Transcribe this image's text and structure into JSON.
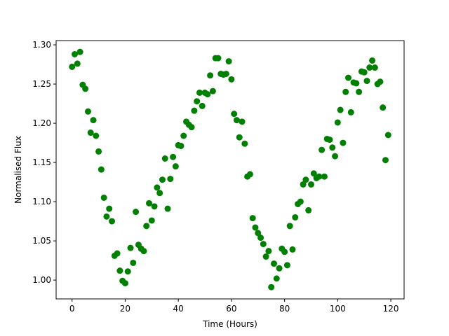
{
  "chart_data": {
    "type": "scatter",
    "xlabel": "Time (Hours)",
    "ylabel": "Normalised Flux",
    "color": "#008000",
    "x": [
      0,
      1,
      2,
      3,
      4,
      5,
      6,
      7,
      8,
      9,
      10,
      11,
      12,
      13,
      14,
      15,
      16,
      17,
      18,
      19,
      20,
      21,
      22,
      23,
      24,
      25,
      26,
      27,
      28,
      29,
      30,
      31,
      32,
      33,
      34,
      35,
      36,
      37,
      38,
      39,
      40,
      41,
      42,
      43,
      44,
      45,
      46,
      47,
      48,
      49,
      50,
      51,
      52,
      53,
      54,
      55,
      56,
      57,
      58,
      59,
      60,
      61,
      62,
      63,
      64,
      65,
      66,
      67,
      68,
      69,
      70,
      71,
      72,
      73,
      74,
      75,
      76,
      77,
      78,
      79,
      80,
      81,
      82,
      83,
      84,
      85,
      86,
      87,
      88,
      89,
      90,
      91,
      92,
      93,
      94,
      95,
      96,
      97,
      98,
      99,
      100,
      101,
      102,
      103,
      104,
      105,
      106,
      107,
      108,
      109,
      110,
      111,
      112,
      113,
      114,
      115,
      116,
      117,
      118,
      119
    ],
    "values": [
      1.272,
      1.288,
      1.276,
      1.291,
      1.249,
      1.244,
      1.215,
      1.188,
      1.204,
      1.184,
      1.164,
      1.141,
      1.105,
      1.081,
      1.091,
      1.075,
      1.031,
      1.034,
      1.012,
      0.999,
      0.996,
      1.011,
      1.041,
      1.022,
      1.087,
      1.045,
      1.04,
      1.037,
      1.069,
      1.098,
      1.076,
      1.094,
      1.118,
      1.111,
      1.128,
      1.155,
      1.091,
      1.129,
      1.157,
      1.145,
      1.172,
      1.171,
      1.184,
      1.202,
      1.198,
      1.195,
      1.216,
      1.228,
      1.239,
      1.222,
      1.239,
      1.237,
      1.261,
      1.241,
      1.283,
      1.283,
      1.263,
      1.262,
      1.263,
      1.279,
      1.256,
      1.212,
      1.204,
      1.182,
      1.202,
      1.174,
      1.132,
      1.135,
      1.079,
      1.067,
      1.06,
      1.054,
      1.046,
      1.03,
      1.037,
      0.991,
      1.021,
      1.002,
      1.015,
      1.04,
      1.036,
      1.019,
      1.069,
      1.039,
      1.08,
      1.097,
      1.1,
      1.122,
      1.128,
      1.089,
      1.122,
      1.136,
      1.13,
      1.132,
      1.166,
      1.132,
      1.18,
      1.179,
      1.169,
      1.158,
      1.201,
      1.217,
      1.175,
      1.24,
      1.258,
      1.214,
      1.252,
      1.251,
      1.24,
      1.266,
      1.265,
      1.254,
      1.271,
      1.28,
      1.271,
      1.25,
      1.253,
      1.22,
      1.153,
      1.185
    ],
    "xlim": [
      -6,
      125
    ],
    "ylim": [
      0.976,
      1.3054
    ],
    "xticks": [
      0,
      20,
      40,
      60,
      80,
      100,
      120
    ],
    "yticks": [
      {
        "value": 1.0,
        "label": "1.00"
      },
      {
        "value": 1.05,
        "label": "1.05"
      },
      {
        "value": 1.1,
        "label": "1.10"
      },
      {
        "value": 1.15,
        "label": "1.15"
      },
      {
        "value": 1.2,
        "label": "1.20"
      },
      {
        "value": 1.25,
        "label": "1.25"
      },
      {
        "value": 1.3,
        "label": "1.30"
      }
    ]
  }
}
